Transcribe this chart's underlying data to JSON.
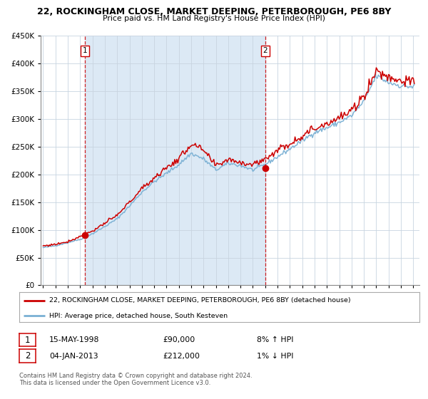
{
  "title1": "22, ROCKINGHAM CLOSE, MARKET DEEPING, PETERBOROUGH, PE6 8BY",
  "title2": "Price paid vs. HM Land Registry's House Price Index (HPI)",
  "legend_line1": "22, ROCKINGHAM CLOSE, MARKET DEEPING, PETERBOROUGH, PE6 8BY (detached house)",
  "legend_line2": "HPI: Average price, detached house, South Kesteven",
  "sale1_date": "15-MAY-1998",
  "sale1_price": "£90,000",
  "sale1_hpi": "8% ↑ HPI",
  "sale2_date": "04-JAN-2013",
  "sale2_price": "£212,000",
  "sale2_hpi": "1% ↓ HPI",
  "footer1": "Contains HM Land Registry data © Crown copyright and database right 2024.",
  "footer2": "This data is licensed under the Open Government Licence v3.0.",
  "sale1_year": 1998.37,
  "sale1_value": 90000,
  "sale2_year": 2013.01,
  "sale2_value": 212000,
  "red_color": "#cc0000",
  "blue_color": "#7ab0d4",
  "span_color": "#dce9f5",
  "plot_bg": "#ffffff",
  "fig_bg": "#ffffff",
  "grid_color": "#c8d4e0",
  "ylim": [
    0,
    450000
  ],
  "xlim_start": 1994.8,
  "xlim_end": 2025.5,
  "ylabel_ticks": [
    0,
    50000,
    100000,
    150000,
    200000,
    250000,
    300000,
    350000,
    400000,
    450000
  ],
  "xtick_years": [
    1995,
    1996,
    1997,
    1998,
    1999,
    2000,
    2001,
    2002,
    2003,
    2004,
    2005,
    2006,
    2007,
    2008,
    2009,
    2010,
    2011,
    2012,
    2013,
    2014,
    2015,
    2016,
    2017,
    2018,
    2019,
    2020,
    2021,
    2022,
    2023,
    2024,
    2025
  ],
  "annual_hpi": {
    "1995": 68000,
    "1996": 71500,
    "1997": 77000,
    "1998": 83000,
    "1999": 93000,
    "2000": 106000,
    "2001": 120000,
    "2002": 143000,
    "2003": 168000,
    "2004": 187000,
    "2005": 202000,
    "2006": 218000,
    "2007": 238000,
    "2008": 228000,
    "2009": 208000,
    "2010": 220000,
    "2011": 216000,
    "2012": 208000,
    "2013": 218000,
    "2014": 232000,
    "2015": 246000,
    "2016": 261000,
    "2017": 276000,
    "2018": 284000,
    "2019": 294000,
    "2020": 306000,
    "2021": 332000,
    "2022": 378000,
    "2023": 366000,
    "2024": 360000,
    "2025": 358000
  },
  "annual_red": {
    "1995": 71000,
    "1996": 74000,
    "1997": 79000,
    "1998": 88000,
    "1999": 98000,
    "2000": 112000,
    "2001": 126000,
    "2002": 150000,
    "2003": 174000,
    "2004": 194000,
    "2005": 212000,
    "2006": 228000,
    "2007": 255000,
    "2008": 243000,
    "2009": 215000,
    "2010": 228000,
    "2011": 222000,
    "2012": 218000,
    "2013": 228000,
    "2014": 244000,
    "2015": 256000,
    "2016": 270000,
    "2017": 283000,
    "2018": 293000,
    "2019": 302000,
    "2020": 314000,
    "2021": 342000,
    "2022": 387000,
    "2023": 376000,
    "2024": 370000,
    "2025": 366000
  }
}
